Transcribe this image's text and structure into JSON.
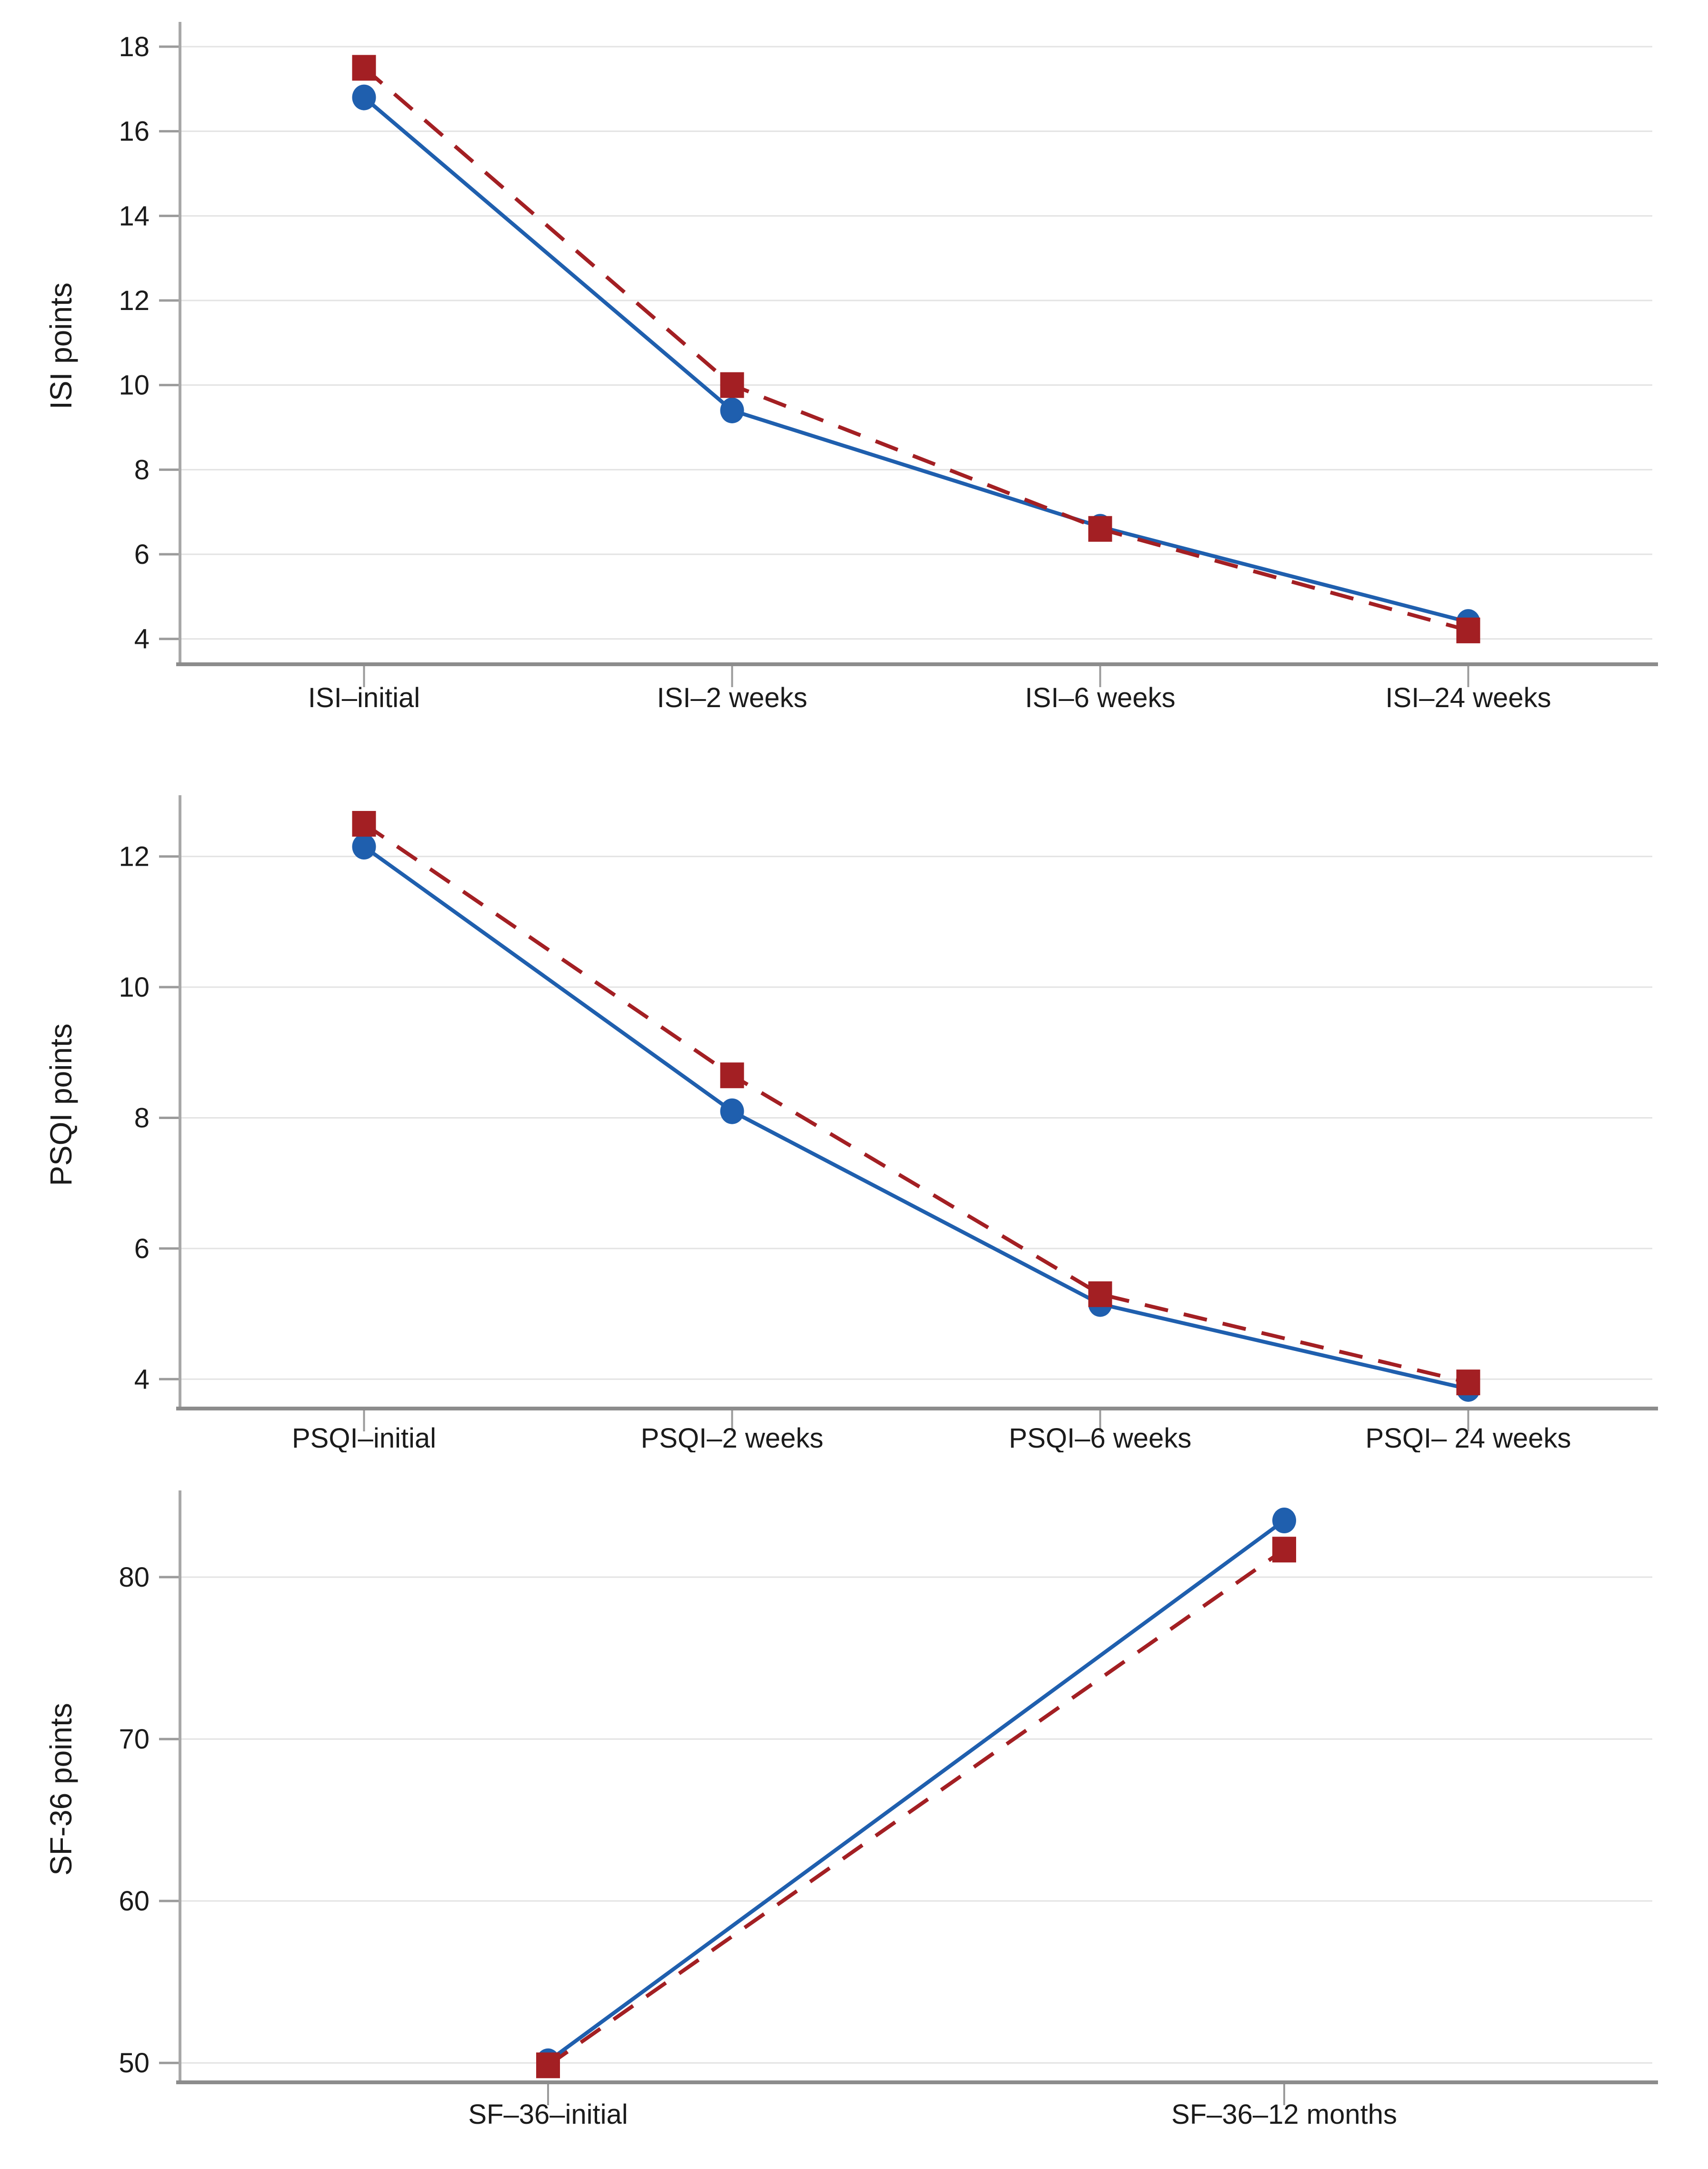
{
  "figure": {
    "background": "#ffffff"
  },
  "palette": {
    "series_blue": "#1f5fae",
    "series_red": "#a31f23",
    "gridline": "#e3e3e3",
    "x_axis_line": "#8c8c8c",
    "y_axis_line": "#a8a8a8",
    "tick_mark": "#9b9b9b",
    "text": "#1b1b1b"
  },
  "chart_data": [
    {
      "type": "line",
      "title": "",
      "xlabel": "",
      "ylabel": "ISI points",
      "categories": [
        "ISI–initial",
        "ISI–2 weeks",
        "ISI–6 weeks",
        "ISI–24 weeks"
      ],
      "yticks": [
        4,
        6,
        8,
        10,
        12,
        14,
        16,
        18
      ],
      "ylim": [
        3.4,
        18.45
      ],
      "grid": true,
      "legend": "none",
      "series": [
        {
          "name": "blue solid line, circle markers",
          "marker": "circle",
          "line": "solid",
          "color": "#1f5fae",
          "values": [
            16.8,
            9.4,
            6.65,
            4.4
          ]
        },
        {
          "name": "red dashed line, square markers",
          "marker": "square",
          "line": "dashed",
          "color": "#a31f23",
          "values": [
            17.5,
            10.0,
            6.6,
            4.2
          ]
        }
      ]
    },
    {
      "type": "line",
      "title": "",
      "xlabel": "",
      "ylabel": "PSQI points",
      "categories": [
        "PSQI–initial",
        "PSQI–2 weeks",
        "PSQI–6 weeks",
        "PSQI– 24 weeks"
      ],
      "yticks": [
        4,
        6,
        8,
        10,
        12
      ],
      "ylim": [
        3.55,
        12.85
      ],
      "grid": true,
      "legend": "none",
      "series": [
        {
          "name": "blue solid line, circle markers",
          "marker": "circle",
          "line": "solid",
          "color": "#1f5fae",
          "values": [
            12.15,
            8.1,
            5.15,
            3.85
          ]
        },
        {
          "name": "red dashed line, square markers",
          "marker": "square",
          "line": "dashed",
          "color": "#a31f23",
          "values": [
            12.5,
            8.65,
            5.3,
            3.95
          ]
        }
      ]
    },
    {
      "type": "line",
      "title": "",
      "xlabel": "",
      "ylabel": "SF-36 points",
      "categories": [
        "SF–36–initial",
        "SF–36–12 months"
      ],
      "yticks": [
        50,
        60,
        70,
        80
      ],
      "ylim": [
        48.8,
        85.0
      ],
      "grid": true,
      "legend": "none",
      "series": [
        {
          "name": "blue solid line, circle markers",
          "marker": "circle",
          "line": "solid",
          "color": "#1f5fae",
          "values": [
            50.1,
            83.5
          ]
        },
        {
          "name": "red dashed line, square markers",
          "marker": "square",
          "line": "dashed",
          "color": "#a31f23",
          "values": [
            49.85,
            81.7
          ]
        }
      ]
    }
  ]
}
